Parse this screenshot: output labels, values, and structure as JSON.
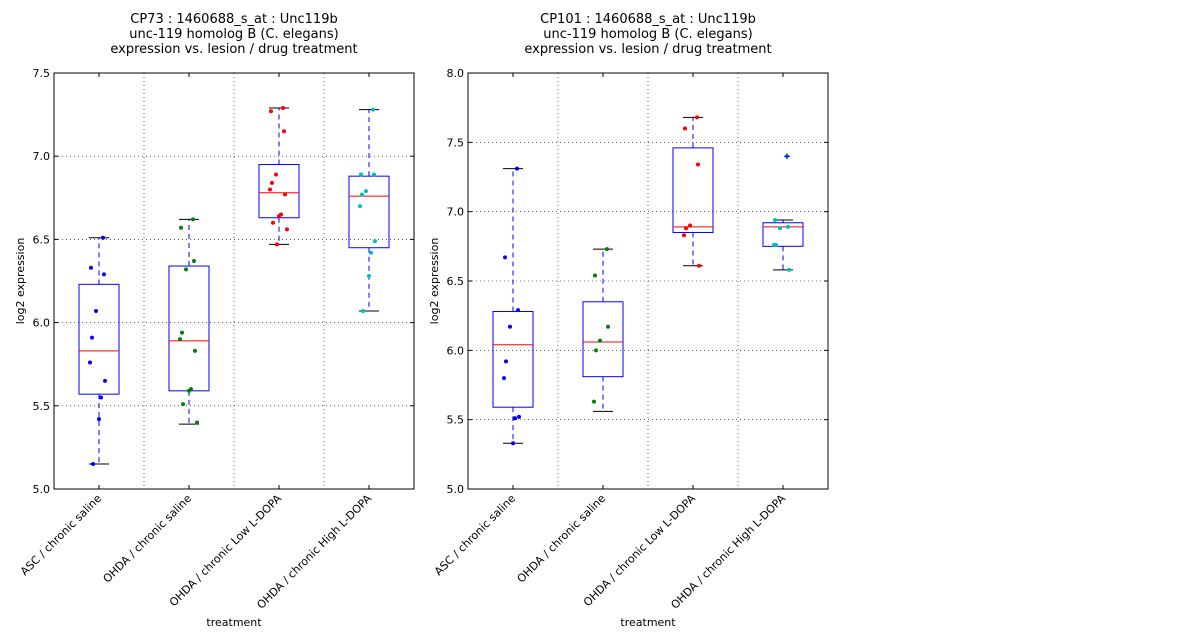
{
  "chart_data": [
    {
      "type": "boxplot",
      "title_lines": [
        "CP73 : 1460688_s_at : Unc119b",
        "unc-119 homolog B (C. elegans)",
        "expression vs. lesion / drug treatment"
      ],
      "xlabel": "treatment",
      "ylabel": "log2 expression",
      "ylim": [
        5.0,
        7.5
      ],
      "yticks": [
        "5.0",
        "5.5",
        "6.0",
        "6.5",
        "7.0",
        "7.5"
      ],
      "grid": true,
      "categories": [
        "ASC / chronic saline",
        "OHDA / chronic saline",
        "OHDA / chronic Low L-DOPA",
        "OHDA / chronic High L-DOPA"
      ],
      "groups": [
        {
          "color": "#0000ff",
          "q1": 5.57,
          "median": 5.83,
          "q3": 6.23,
          "whisker_low": 5.15,
          "whisker_high": 6.51,
          "outliers": [],
          "points": [
            6.51,
            6.33,
            6.29,
            6.07,
            5.91,
            5.76,
            5.65,
            5.55,
            5.42,
            5.15
          ]
        },
        {
          "color": "#008000",
          "q1": 5.59,
          "median": 5.89,
          "q3": 6.34,
          "whisker_low": 5.39,
          "whisker_high": 6.62,
          "outliers": [],
          "points": [
            6.62,
            6.57,
            6.37,
            6.32,
            5.94,
            5.9,
            5.83,
            5.6,
            5.59,
            5.51,
            5.4
          ]
        },
        {
          "color": "#ff0000",
          "q1": 6.63,
          "median": 6.78,
          "q3": 6.95,
          "whisker_low": 6.47,
          "whisker_high": 7.29,
          "outliers": [],
          "points": [
            7.29,
            7.27,
            7.15,
            6.89,
            6.84,
            6.8,
            6.77,
            6.65,
            6.64,
            6.6,
            6.56,
            6.47
          ]
        },
        {
          "color": "#00bfbf",
          "q1": 6.45,
          "median": 6.76,
          "q3": 6.88,
          "whisker_low": 6.07,
          "whisker_high": 7.28,
          "outliers": [],
          "points": [
            7.28,
            6.89,
            6.89,
            6.79,
            6.77,
            6.7,
            6.49,
            6.42,
            6.28,
            6.07
          ]
        }
      ]
    },
    {
      "type": "boxplot",
      "title_lines": [
        "CP101 : 1460688_s_at : Unc119b",
        "unc-119 homolog B (C. elegans)",
        "expression vs. lesion / drug treatment"
      ],
      "xlabel": "treatment",
      "ylabel": "log2 expression",
      "ylim": [
        5.0,
        8.0
      ],
      "yticks": [
        "5.0",
        "5.5",
        "6.0",
        "6.5",
        "7.0",
        "7.5",
        "8.0"
      ],
      "grid": true,
      "categories": [
        "ASC / chronic saline",
        "OHDA / chronic saline",
        "OHDA / chronic Low L-DOPA",
        "OHDA / chronic High L-DOPA"
      ],
      "groups": [
        {
          "color": "#0000ff",
          "q1": 5.59,
          "median": 6.04,
          "q3": 6.28,
          "whisker_low": 5.33,
          "whisker_high": 7.31,
          "outliers": [],
          "points": [
            7.31,
            6.67,
            6.29,
            6.17,
            5.92,
            5.8,
            5.52,
            5.51,
            5.33
          ]
        },
        {
          "color": "#008000",
          "q1": 5.81,
          "median": 6.06,
          "q3": 6.35,
          "whisker_low": 5.56,
          "whisker_high": 6.73,
          "outliers": [],
          "points": [
            6.73,
            6.54,
            6.17,
            6.07,
            6.0,
            5.63
          ]
        },
        {
          "color": "#ff0000",
          "q1": 6.85,
          "median": 6.89,
          "q3": 7.46,
          "whisker_low": 6.61,
          "whisker_high": 7.68,
          "outliers": [],
          "points": [
            7.68,
            7.6,
            7.34,
            6.9,
            6.88,
            6.83,
            6.61
          ]
        },
        {
          "color": "#00bfbf",
          "q1": 6.75,
          "median": 6.89,
          "q3": 6.92,
          "whisker_low": 6.58,
          "whisker_high": 6.94,
          "outliers": [
            7.4
          ],
          "points": [
            7.4,
            6.94,
            6.89,
            6.88,
            6.76,
            6.76,
            6.58
          ]
        }
      ]
    }
  ]
}
